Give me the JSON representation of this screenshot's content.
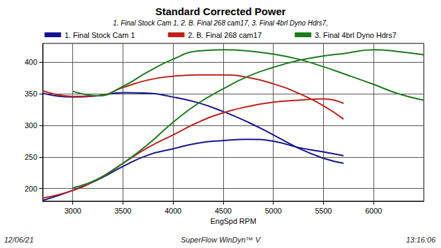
{
  "chart_data": {
    "type": "line",
    "title": "Standard Corrected Power",
    "subtitle": "1. Final Stock Cam 1, 2. B. Final 268 cam17, 3. Final 4brl Dyno Hdrs7,",
    "x_label": "EngSpd RPM",
    "annotations": [
      "12/06/21",
      "SuperFlow WinDyn™ V",
      "13:16:06"
    ],
    "x": [
      2700,
      3000,
      3250,
      3500,
      3750,
      4000,
      4250,
      4500,
      4750,
      5000,
      5250,
      5500,
      5700,
      6000,
      6250,
      6500
    ],
    "series": [
      {
        "name": "1. Final Stock Cam 1",
        "color": "#14148c",
        "line_style": "solid",
        "values": [
          351,
          345,
          347,
          352,
          351,
          345,
          336,
          322,
          305,
          285,
          264,
          248,
          240,
          null,
          null,
          null
        ]
      },
      {
        "name": "1. Final Stock Cam 1",
        "color": "#14148c",
        "line_style": "solid",
        "values": [
          181,
          197,
          214,
          235,
          253,
          263,
          272,
          276,
          278,
          275,
          265,
          258,
          252,
          null,
          null,
          null
        ]
      },
      {
        "name": "2. B. Final 268 cam17",
        "color": "#c0201a",
        "line_style": "solid",
        "values": [
          355,
          346,
          347,
          360,
          372,
          378,
          380,
          380,
          376,
          366,
          351,
          331,
          310,
          null,
          null,
          null
        ]
      },
      {
        "name": "2. B. Final 268 cam17",
        "color": "#c0201a",
        "line_style": "solid",
        "values": [
          185,
          197,
          215,
          240,
          265,
          285,
          305,
          320,
          330,
          337,
          340,
          342,
          335,
          null,
          null,
          null
        ]
      },
      {
        "name": "3. Final 4brl Dyno Hdrs7",
        "color": "#1a7a1a",
        "line_style": "solid",
        "values": [
          null,
          354,
          347,
          362,
          385,
          405,
          418,
          420,
          418,
          413,
          405,
          393,
          382,
          365,
          350,
          340
        ]
      },
      {
        "name": "3. Final 4brl Dyno Hdrs7",
        "color": "#1a7a1a",
        "line_style": "solid",
        "values": [
          null,
          201,
          215,
          240,
          270,
          305,
          335,
          358,
          378,
          392,
          403,
          410,
          414,
          420,
          417,
          412
        ]
      }
    ],
    "xlim": [
      2700,
      6500
    ],
    "xticks": [
      3000,
      3500,
      4000,
      4500,
      5000,
      5500,
      6000
    ],
    "ylim": [
      180,
      430
    ],
    "yticks": [
      200,
      250,
      300,
      350,
      400
    ],
    "grid": true,
    "legend": "top"
  }
}
